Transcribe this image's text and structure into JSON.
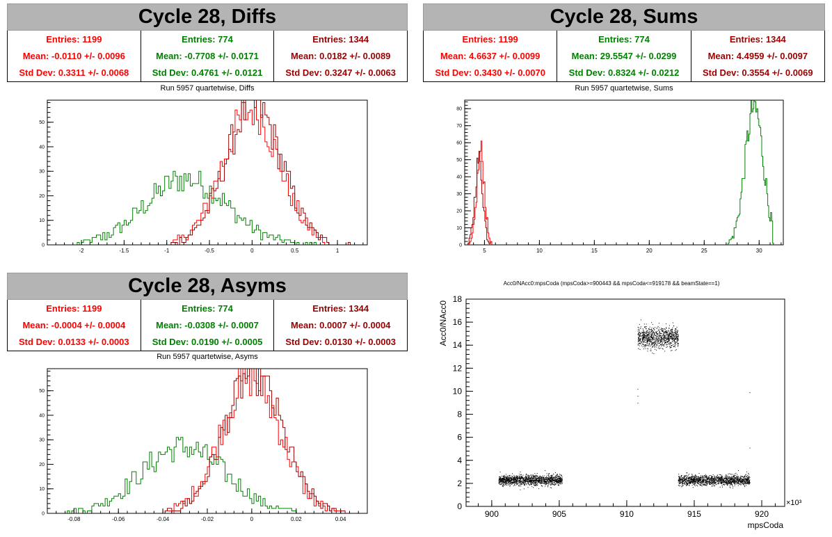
{
  "colors": {
    "red": "#ff0000",
    "green": "#008000",
    "darkred": "#990000",
    "black": "#000000"
  },
  "panels": {
    "diffs": {
      "header": "Cycle 28, Diffs",
      "subtitle": "Run 5957 quartetwise, Diffs",
      "stats": [
        {
          "color": "red",
          "entries": "Entries: 1199",
          "mean": "Mean: -0.0110 +/- 0.0096",
          "std": "Std Dev: 0.3311 +/- 0.0068"
        },
        {
          "color": "green",
          "entries": "Entries: 774",
          "mean": "Mean: -0.7708 +/- 0.0171",
          "std": "Std Dev: 0.4761 +/- 0.0121"
        },
        {
          "color": "darkred",
          "entries": "Entries: 1344",
          "mean": "Mean: 0.0182 +/- 0.0089",
          "std": "Std Dev: 0.3247 +/- 0.0063"
        }
      ]
    },
    "sums": {
      "header": "Cycle 28, Sums",
      "subtitle": "Run 5957 quartetwise, Sums",
      "stats": [
        {
          "color": "red",
          "entries": "Entries: 1199",
          "mean": "Mean: 4.6637 +/- 0.0099",
          "std": "Std Dev: 0.3430 +/- 0.0070"
        },
        {
          "color": "green",
          "entries": "Entries: 774",
          "mean": "Mean: 29.5547 +/- 0.0299",
          "std": "Std Dev: 0.8324 +/- 0.0212"
        },
        {
          "color": "darkred",
          "entries": "Entries: 1344",
          "mean": "Mean: 4.4959 +/- 0.0097",
          "std": "Std Dev: 0.3554 +/- 0.0069"
        }
      ]
    },
    "asyms": {
      "header": "Cycle 28, Asyms",
      "subtitle": "Run 5957 quartetwise, Asyms",
      "stats": [
        {
          "color": "red",
          "entries": "Entries: 1199",
          "mean": "Mean: -0.0004 +/- 0.0004",
          "std": "Std Dev: 0.0133 +/- 0.0003"
        },
        {
          "color": "green",
          "entries": "Entries: 774",
          "mean": "Mean: -0.0308 +/- 0.0007",
          "std": "Std Dev: 0.0190 +/- 0.0005"
        },
        {
          "color": "darkred",
          "entries": "Entries: 1344",
          "mean": "Mean: 0.0007 +/- 0.0004",
          "std": "Std Dev: 0.0130 +/- 0.0003"
        }
      ]
    },
    "scatter": {
      "title": "Acc0/NAcc0:mpsCoda (mpsCoda>=900443 && mpsCoda<=919178 && beamState==1)"
    }
  },
  "chart_data": [
    {
      "type": "histogram",
      "id": "diffs",
      "title": "Run 5957 quartetwise, Diffs",
      "xlim": [
        -2.4,
        1.35
      ],
      "ylim": [
        0,
        59
      ],
      "xticks": [
        -2,
        -1.5,
        -1,
        -0.5,
        0,
        0.5,
        1
      ],
      "xtick_labels": [
        "-2",
        "-1.5",
        "-1",
        "-0.5",
        "0",
        "0.5",
        "1"
      ],
      "yticks": [
        0,
        10,
        20,
        30,
        40,
        50
      ],
      "series": [
        {
          "color": "green",
          "mean": -0.7708,
          "std": 0.4761,
          "peak": 27,
          "bin": 0.025,
          "lo": -2.05,
          "hi": 0.85
        },
        {
          "color": "red",
          "mean": -0.011,
          "std": 0.3311,
          "peak": 55,
          "bin": 0.025,
          "lo": -0.95,
          "hi": 0.85
        },
        {
          "color": "darkred",
          "mean": 0.0182,
          "std": 0.3247,
          "peak": 57,
          "bin": 0.025,
          "lo": -0.95,
          "hi": 1.15
        }
      ]
    },
    {
      "type": "histogram",
      "id": "sums",
      "title": "Run 5957 quartetwise, Sums",
      "xlim": [
        3.2,
        32.2
      ],
      "ylim": [
        0,
        85
      ],
      "xticks": [
        5,
        10,
        15,
        20,
        25,
        30
      ],
      "xtick_labels": [
        "5",
        "10",
        "15",
        "20",
        "25",
        "30"
      ],
      "yticks": [
        0,
        10,
        20,
        30,
        40,
        50,
        60,
        70,
        80
      ],
      "series": [
        {
          "color": "green",
          "mean": 29.5547,
          "std": 0.8324,
          "peak": 81,
          "bin": 0.09,
          "lo": 27.0,
          "hi": 31.3
        },
        {
          "color": "red",
          "mean": 4.6637,
          "std": 0.343,
          "peak": 55,
          "bin": 0.09,
          "lo": 3.6,
          "hi": 5.8
        },
        {
          "color": "darkred",
          "mean": 4.4959,
          "std": 0.3554,
          "peak": 50,
          "bin": 0.09,
          "lo": 3.5,
          "hi": 5.7
        }
      ]
    },
    {
      "type": "histogram",
      "id": "asyms",
      "title": "Run 5957 quartetwise, Asyms",
      "xlim": [
        -0.092,
        0.052
      ],
      "ylim": [
        0,
        59
      ],
      "xticks": [
        -0.08,
        -0.06,
        -0.04,
        -0.02,
        0,
        0.02,
        0.04
      ],
      "xtick_labels": [
        "-0.08",
        "-0.06",
        "-0.04",
        "-0.02",
        "0",
        "0.02",
        "0.04"
      ],
      "yticks": [
        0,
        10,
        20,
        30,
        40,
        50
      ],
      "series": [
        {
          "color": "green",
          "mean": -0.0308,
          "std": 0.019,
          "peak": 27,
          "bin": 0.001,
          "lo": -0.085,
          "hi": 0.02
        },
        {
          "color": "red",
          "mean": -0.0004,
          "std": 0.0133,
          "peak": 55,
          "bin": 0.001,
          "lo": -0.04,
          "hi": 0.04
        },
        {
          "color": "darkred",
          "mean": 0.0007,
          "std": 0.013,
          "peak": 57,
          "bin": 0.001,
          "lo": -0.04,
          "hi": 0.045
        }
      ]
    },
    {
      "type": "scatter",
      "id": "scatter",
      "title": "Acc0/NAcc0:mpsCoda (mpsCoda>=900443 && mpsCoda<=919178 && beamState==1)",
      "xlabel": "mpsCoda",
      "ylabel": "Acc0/NAcc0",
      "xlim": [
        898.1,
        921.7
      ],
      "ylim": [
        0,
        18
      ],
      "xticks": [
        900,
        905,
        910,
        915,
        920
      ],
      "xtick_labels": [
        "900",
        "905",
        "910",
        "915",
        "920"
      ],
      "yticks": [
        0,
        2,
        4,
        6,
        8,
        10,
        12,
        14,
        16,
        18
      ],
      "ytick_labels": [
        "0",
        "2",
        "4",
        "6",
        "8",
        "10",
        "12",
        "14",
        "16",
        "18"
      ],
      "x_multiplier": "×10³",
      "clusters": [
        {
          "x": [
            900.5,
            905.2
          ],
          "y_mean": 2.3,
          "y_std": 0.22,
          "count": 1400
        },
        {
          "x": [
            910.8,
            913.8
          ],
          "y_mean": 14.7,
          "y_std": 0.45,
          "count": 900
        },
        {
          "x": [
            913.8,
            919.1
          ],
          "y_mean": 2.3,
          "y_std": 0.22,
          "count": 1400
        }
      ],
      "outliers": [
        [
          910.8,
          9.0
        ],
        [
          910.8,
          10.2
        ],
        [
          910.8,
          9.6
        ],
        [
          919.1,
          9.9
        ],
        [
          919.1,
          5.1
        ]
      ]
    }
  ]
}
